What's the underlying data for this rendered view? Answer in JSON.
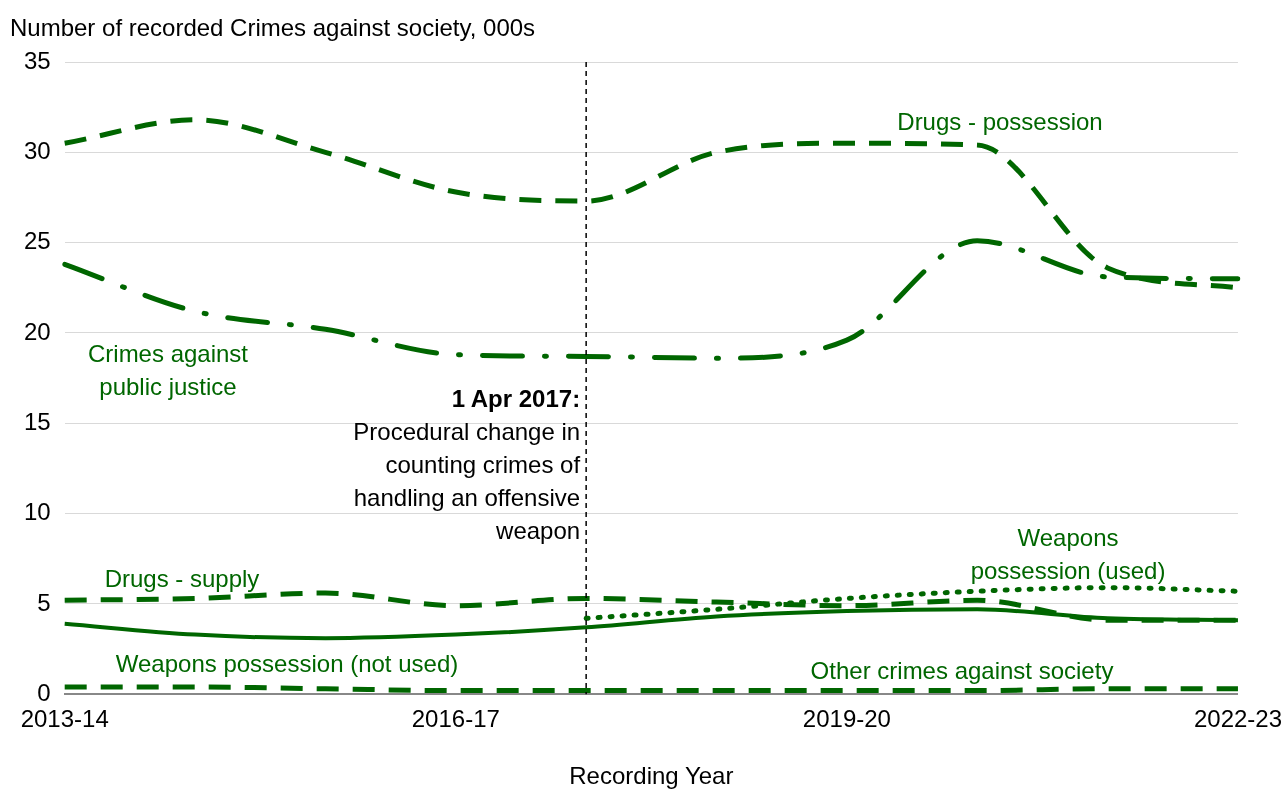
{
  "chart_data": {
    "type": "line",
    "ylabel": "Number of recorded Crimes against society, 000s",
    "xlabel": "Recording Year",
    "categories": [
      "2013-14",
      null,
      null,
      "2016-17",
      null,
      null,
      "2019-20",
      null,
      null,
      "2022-23"
    ],
    "ylim": [
      0,
      35
    ],
    "yticks": [
      0,
      5,
      10,
      15,
      20,
      25,
      30,
      35
    ],
    "grid": "y",
    "legend": false,
    "series": [
      {
        "name": "Drugs - possession",
        "color": "#006600",
        "line_style": "dashed",
        "values": [
          30.5,
          31.8,
          30.0,
          27.8,
          27.3,
          30.0,
          30.5,
          30.4,
          23.6,
          22.5
        ]
      },
      {
        "name": "Crimes against public justice",
        "color": "#006600",
        "line_style": "dashdot",
        "values": [
          23.8,
          21.2,
          20.2,
          18.8,
          18.7,
          18.6,
          19.6,
          25.1,
          23.1,
          23.0
        ]
      },
      {
        "name": "Drugs - supply",
        "color": "#006600",
        "line_style": "dashed",
        "values": [
          5.2,
          5.3,
          5.6,
          4.9,
          5.3,
          5.1,
          4.9,
          5.2,
          4.1,
          4.1
        ]
      },
      {
        "name": "Weapons possession (not used)",
        "color": "#006600",
        "line_style": "solid",
        "values": [
          3.9,
          3.3,
          3.1,
          3.3,
          3.7,
          4.3,
          4.6,
          4.7,
          4.2,
          4.1
        ]
      },
      {
        "name": "Weapons possession (used)",
        "color": "#006600",
        "line_style": "dotted",
        "values": [
          null,
          null,
          null,
          null,
          4.2,
          4.7,
          5.3,
          5.7,
          5.9,
          5.7
        ]
      },
      {
        "name": "Other crimes against society",
        "color": "#006600",
        "line_style": "dashed",
        "values": [
          0.4,
          0.4,
          0.3,
          0.2,
          0.2,
          0.2,
          0.2,
          0.2,
          0.3,
          0.3
        ]
      }
    ],
    "annotations": [
      "1 Apr 2017:",
      "Procedural change in counting crimes of handling an offensive weapon"
    ]
  }
}
